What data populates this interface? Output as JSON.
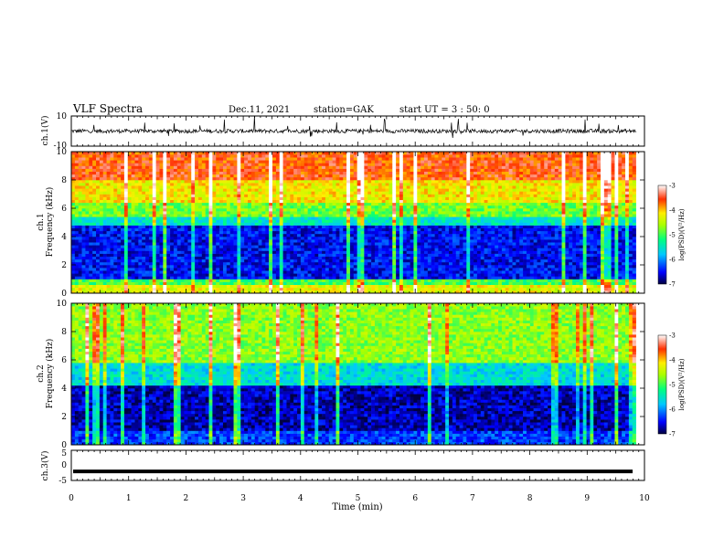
{
  "header": {
    "title": "VLF Spectra",
    "date": "Dec.11, 2021",
    "station": "station=GAK",
    "start": "start UT =  3 : 50: 0"
  },
  "chart_data": [
    {
      "type": "line",
      "panel": "ch1-waveform",
      "ylabel": "ch.1(V)",
      "ylim": [
        -10,
        10
      ],
      "yticks": [
        "10",
        "-10"
      ],
      "xlim": [
        0,
        10
      ],
      "baseline": 0,
      "noise_amplitude": 2,
      "color": "#000000"
    },
    {
      "type": "heatmap",
      "panel": "ch1-spectrogram",
      "ylabel_top": "ch.1",
      "ylabel": "Frequency (kHz)",
      "ylim": [
        0,
        10
      ],
      "yticks": [
        "0",
        "2",
        "4",
        "6",
        "8",
        "10"
      ],
      "xlim": [
        0,
        9.85
      ],
      "bands": [
        {
          "from": 0,
          "to": 0.6,
          "level": -4.3
        },
        {
          "from": 0.6,
          "to": 1.0,
          "level": -5.0
        },
        {
          "from": 1.0,
          "to": 4.8,
          "level": -6.5
        },
        {
          "from": 4.8,
          "to": 5.5,
          "level": -5.5
        },
        {
          "from": 5.5,
          "to": 6.5,
          "level": -4.8
        },
        {
          "from": 6.5,
          "to": 8.0,
          "level": -4.2
        },
        {
          "from": 8.0,
          "to": 10.0,
          "level": -3.6
        }
      ],
      "colorbar": {
        "label": "log(PSD)(V²/Hz)",
        "ticks": [
          "-3",
          "-4",
          "-5",
          "-6",
          "-7"
        ],
        "range": [
          -7,
          -3
        ]
      }
    },
    {
      "type": "heatmap",
      "panel": "ch2-spectrogram",
      "ylabel_top": "ch.2",
      "ylabel": "Frequency (kHz)",
      "ylim": [
        0,
        10
      ],
      "yticks": [
        "0",
        "2",
        "4",
        "6",
        "8",
        "10"
      ],
      "xlim": [
        0,
        9.85
      ],
      "bands": [
        {
          "from": 0,
          "to": 1.0,
          "level": -6.3
        },
        {
          "from": 1.0,
          "to": 4.2,
          "level": -6.7
        },
        {
          "from": 4.2,
          "to": 5.8,
          "level": -5.6
        },
        {
          "from": 5.8,
          "to": 10.0,
          "level": -4.7
        }
      ],
      "colorbar": {
        "label": "log(PSD)(V²/Hz)",
        "ticks": [
          "-3",
          "-4",
          "-5",
          "-6",
          "-7"
        ],
        "range": [
          -7,
          -3
        ]
      }
    },
    {
      "type": "line",
      "panel": "ch3-waveform",
      "ylabel": "ch.3(V)",
      "ylim": [
        -5,
        5
      ],
      "yticks": [
        "5",
        "0",
        "-5"
      ],
      "xlim": [
        0,
        10
      ],
      "xticks": [
        "0",
        "1",
        "2",
        "3",
        "4",
        "5",
        "6",
        "7",
        "8",
        "9",
        "10"
      ],
      "xlabel": "Time (min)",
      "level": -2,
      "color": "#000000"
    }
  ]
}
